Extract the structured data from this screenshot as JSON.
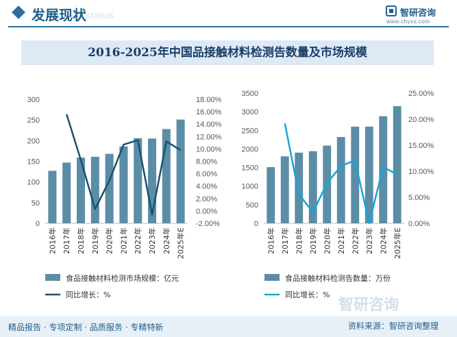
{
  "header": {
    "title": "发展现状",
    "subtitle_watermark": "ent status",
    "logo_text": "智研咨询",
    "logo_url": "www.chyxx.com"
  },
  "title": "2016-2025年中国品接触材料检测告数量及市场规模",
  "footer": {
    "left": "精品报告 · 专项定制 · 品质服务 · 专精特新",
    "right": "资料来源：智研咨询整理",
    "watermark": "智研咨询"
  },
  "colors": {
    "bar": "#5b8ea6",
    "line_left": "#1a4f6e",
    "line_right": "#1aa3d9",
    "accent": "#1f5f8b"
  },
  "chart_data": [
    {
      "type": "bar",
      "categories": [
        "2016年",
        "2017年",
        "2018年",
        "2019年",
        "2020年",
        "2021年",
        "2022年",
        "2023年",
        "2024年",
        "2025年E"
      ],
      "series": [
        {
          "name": "食品接触材料检测市场规模：亿元",
          "type": "bar",
          "axis": "left",
          "values": [
            127,
            147,
            159,
            161,
            168,
            186,
            206,
            205,
            228,
            251
          ]
        },
        {
          "name": "同比增长：%",
          "type": "line",
          "axis": "right",
          "values": [
            null,
            15.6,
            8.2,
            0.3,
            4.9,
            10.7,
            11.4,
            -0.6,
            11.2,
            9.8
          ]
        }
      ],
      "y_left": {
        "min": 0,
        "max": 300,
        "ticks": [
          "0",
          "50",
          "100",
          "150",
          "200",
          "250",
          "300"
        ]
      },
      "y_right": {
        "min": -2,
        "max": 18,
        "ticks": [
          "-2.00%",
          "0.00%",
          "2.00%",
          "4.00%",
          "6.00%",
          "8.00%",
          "10.00%",
          "12.00%",
          "14.00%",
          "16.00%",
          "18.00%"
        ]
      }
    },
    {
      "type": "bar",
      "categories": [
        "2016年",
        "2017年",
        "2018年",
        "2019年",
        "2020年",
        "2021年",
        "2022年",
        "2023年",
        "2024年",
        "2025年E"
      ],
      "series": [
        {
          "name": "食品接触材料检测告数量：万份",
          "type": "bar",
          "axis": "left",
          "values": [
            1510,
            1800,
            1900,
            1940,
            2090,
            2320,
            2600,
            2600,
            2880,
            3150
          ]
        },
        {
          "name": "同比增长：%",
          "type": "line",
          "axis": "right",
          "values": [
            null,
            19.2,
            5.6,
            2.1,
            7.7,
            11.0,
            12.1,
            0.0,
            10.8,
            9.4
          ]
        }
      ],
      "y_left": {
        "min": 0,
        "max": 3500,
        "ticks": [
          "0",
          "500",
          "1000",
          "1500",
          "2000",
          "2500",
          "3000",
          "3500"
        ]
      },
      "y_right": {
        "min": 0,
        "max": 25,
        "ticks": [
          "0.00%",
          "5.00%",
          "10.00%",
          "15.00%",
          "20.00%",
          "25.00%"
        ]
      }
    }
  ]
}
